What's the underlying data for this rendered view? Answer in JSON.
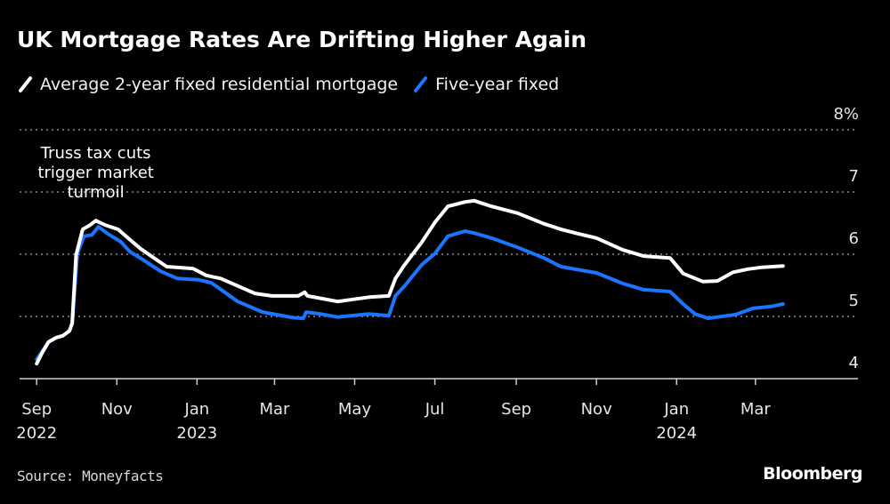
{
  "chart_data": {
    "type": "line",
    "title": "UK Mortgage Rates Are Drifting Higher Again",
    "xlabel": "",
    "ylabel": "",
    "ylim": [
      4,
      8
    ],
    "y_ticks": [
      {
        "value": 8,
        "label": "8%"
      },
      {
        "value": 7,
        "label": "7"
      },
      {
        "value": 6,
        "label": "6"
      },
      {
        "value": 5,
        "label": "5"
      },
      {
        "value": 4,
        "label": "4"
      }
    ],
    "xlim": [
      "2022-08-19",
      "2024-05-18"
    ],
    "x_ticks": [
      {
        "date": "2022-09-01",
        "label": "Sep",
        "sublabel": "2022"
      },
      {
        "date": "2022-11-01",
        "label": "Nov",
        "sublabel": ""
      },
      {
        "date": "2023-01-01",
        "label": "Jan",
        "sublabel": "2023"
      },
      {
        "date": "2023-03-01",
        "label": "Mar",
        "sublabel": ""
      },
      {
        "date": "2023-05-01",
        "label": "May",
        "sublabel": ""
      },
      {
        "date": "2023-07-01",
        "label": "Jul",
        "sublabel": ""
      },
      {
        "date": "2023-09-01",
        "label": "Sep",
        "sublabel": ""
      },
      {
        "date": "2023-11-01",
        "label": "Nov",
        "sublabel": ""
      },
      {
        "date": "2024-01-01",
        "label": "Jan",
        "sublabel": "2024"
      },
      {
        "date": "2024-03-01",
        "label": "Mar",
        "sublabel": ""
      }
    ],
    "grid": "horizontal-dotted",
    "legend_position": "top-left",
    "series": [
      {
        "name": "Average 2-year fixed residential mortgage",
        "color": "#ffffff",
        "points": [
          [
            "2022-09-01",
            4.24
          ],
          [
            "2022-09-05",
            4.41
          ],
          [
            "2022-09-10",
            4.59
          ],
          [
            "2022-09-16",
            4.66
          ],
          [
            "2022-09-21",
            4.69
          ],
          [
            "2022-09-26",
            4.77
          ],
          [
            "2022-09-28",
            4.89
          ],
          [
            "2022-10-01",
            5.99
          ],
          [
            "2022-10-06",
            6.4
          ],
          [
            "2022-10-11",
            6.46
          ],
          [
            "2022-10-16",
            6.54
          ],
          [
            "2022-10-23",
            6.47
          ],
          [
            "2022-11-02",
            6.4
          ],
          [
            "2022-11-09",
            6.27
          ],
          [
            "2022-11-19",
            6.09
          ],
          [
            "2022-12-02",
            5.9
          ],
          [
            "2022-12-09",
            5.8
          ],
          [
            "2022-12-29",
            5.77
          ],
          [
            "2023-01-08",
            5.66
          ],
          [
            "2023-01-19",
            5.61
          ],
          [
            "2023-02-14",
            5.37
          ],
          [
            "2023-02-27",
            5.33
          ],
          [
            "2023-03-19",
            5.33
          ],
          [
            "2023-03-24",
            5.39
          ],
          [
            "2023-03-26",
            5.33
          ],
          [
            "2023-04-18",
            5.24
          ],
          [
            "2023-05-12",
            5.31
          ],
          [
            "2023-05-27",
            5.33
          ],
          [
            "2023-06-01",
            5.61
          ],
          [
            "2023-06-08",
            5.83
          ],
          [
            "2023-06-21",
            6.19
          ],
          [
            "2023-07-01",
            6.51
          ],
          [
            "2023-07-11",
            6.77
          ],
          [
            "2023-07-24",
            6.84
          ],
          [
            "2023-07-31",
            6.86
          ],
          [
            "2023-08-13",
            6.77
          ],
          [
            "2023-09-02",
            6.66
          ],
          [
            "2023-09-22",
            6.49
          ],
          [
            "2023-10-05",
            6.4
          ],
          [
            "2023-10-18",
            6.33
          ],
          [
            "2023-11-01",
            6.26
          ],
          [
            "2023-11-21",
            6.07
          ],
          [
            "2023-12-07",
            5.97
          ],
          [
            "2023-12-27",
            5.94
          ],
          [
            "2024-01-06",
            5.69
          ],
          [
            "2024-01-21",
            5.56
          ],
          [
            "2024-02-01",
            5.57
          ],
          [
            "2024-02-13",
            5.71
          ],
          [
            "2024-02-24",
            5.76
          ],
          [
            "2024-03-06",
            5.79
          ],
          [
            "2024-03-22",
            5.81
          ]
        ]
      },
      {
        "name": "Five-year fixed",
        "color": "#1a75ff",
        "points": [
          [
            "2022-09-01",
            4.31
          ],
          [
            "2022-09-05",
            4.43
          ],
          [
            "2022-09-10",
            4.59
          ],
          [
            "2022-09-16",
            4.66
          ],
          [
            "2022-09-21",
            4.69
          ],
          [
            "2022-09-26",
            4.77
          ],
          [
            "2022-09-28",
            4.89
          ],
          [
            "2022-10-02",
            6.01
          ],
          [
            "2022-10-07",
            6.29
          ],
          [
            "2022-10-13",
            6.31
          ],
          [
            "2022-10-18",
            6.44
          ],
          [
            "2022-10-25",
            6.33
          ],
          [
            "2022-11-04",
            6.2
          ],
          [
            "2022-11-11",
            6.04
          ],
          [
            "2022-11-21",
            5.91
          ],
          [
            "2022-12-04",
            5.73
          ],
          [
            "2022-12-17",
            5.61
          ],
          [
            "2023-01-02",
            5.59
          ],
          [
            "2023-01-12",
            5.54
          ],
          [
            "2023-02-01",
            5.24
          ],
          [
            "2023-02-20",
            5.07
          ],
          [
            "2023-03-15",
            4.98
          ],
          [
            "2023-03-23",
            4.97
          ],
          [
            "2023-03-25",
            5.07
          ],
          [
            "2023-04-05",
            5.04
          ],
          [
            "2023-04-18",
            4.99
          ],
          [
            "2023-05-12",
            5.04
          ],
          [
            "2023-05-27",
            5.01
          ],
          [
            "2023-06-01",
            5.33
          ],
          [
            "2023-06-08",
            5.49
          ],
          [
            "2023-06-21",
            5.83
          ],
          [
            "2023-07-01",
            6.01
          ],
          [
            "2023-07-11",
            6.29
          ],
          [
            "2023-07-24",
            6.37
          ],
          [
            "2023-07-31",
            6.34
          ],
          [
            "2023-08-13",
            6.26
          ],
          [
            "2023-09-02",
            6.11
          ],
          [
            "2023-09-22",
            5.94
          ],
          [
            "2023-10-05",
            5.8
          ],
          [
            "2023-11-01",
            5.7
          ],
          [
            "2023-11-21",
            5.53
          ],
          [
            "2023-12-07",
            5.43
          ],
          [
            "2023-12-27",
            5.4
          ],
          [
            "2024-01-06",
            5.2
          ],
          [
            "2024-01-15",
            5.04
          ],
          [
            "2024-01-25",
            4.97
          ],
          [
            "2024-02-01",
            4.99
          ],
          [
            "2024-02-15",
            5.03
          ],
          [
            "2024-02-28",
            5.13
          ],
          [
            "2024-03-13",
            5.16
          ],
          [
            "2024-03-22",
            5.2
          ]
        ]
      }
    ],
    "annotations": [
      {
        "text_lines": [
          "Truss tax cuts",
          "trigger market",
          "turmoil"
        ],
        "date": "2022-10-16",
        "value": 7.1
      }
    ]
  },
  "header": {
    "title": "UK Mortgage Rates Are Drifting Higher Again"
  },
  "legend": [
    {
      "label": "Average 2-year fixed residential mortgage",
      "color": "#ffffff"
    },
    {
      "label": "Five-year fixed",
      "color": "#1a75ff"
    }
  ],
  "footer": {
    "source": "Source: Moneyfacts",
    "brand": "Bloomberg"
  }
}
